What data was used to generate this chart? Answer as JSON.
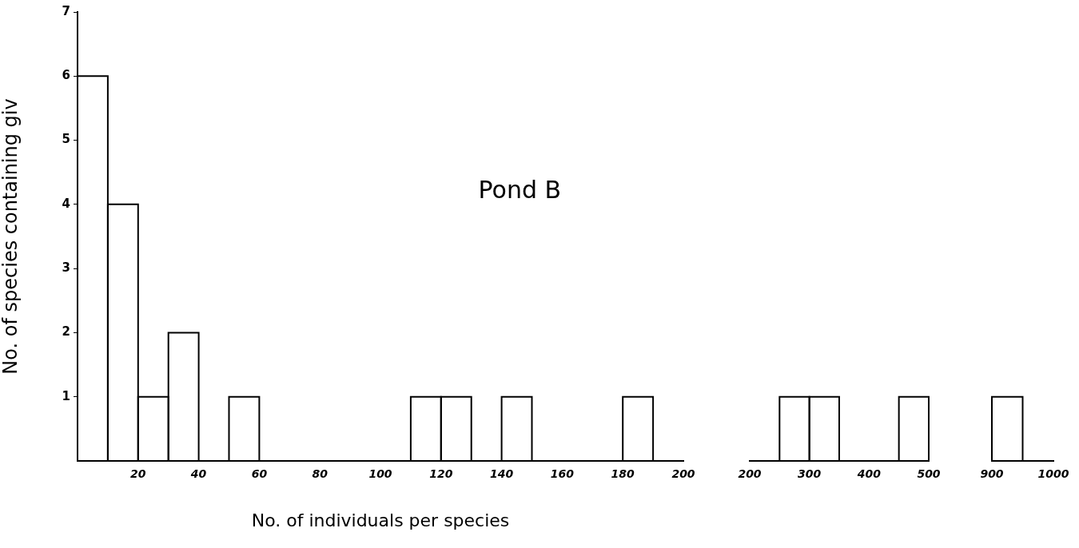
{
  "chart_data": [
    {
      "type": "histogram",
      "title": "Pond B",
      "xlabel": "No. of individuals per species",
      "ylabel": "No. of species containing giv",
      "color": "#000000",
      "bins": [
        0,
        10,
        20,
        30,
        40,
        50,
        60,
        70,
        80,
        90,
        100,
        110,
        120,
        130,
        140,
        150,
        160,
        170,
        180,
        190,
        200
      ],
      "values": [
        6,
        4,
        1,
        2,
        0,
        1,
        0,
        0,
        0,
        0,
        0,
        1,
        1,
        0,
        1,
        0,
        0,
        0,
        1,
        0
      ],
      "xlim": [
        0,
        200
      ],
      "xticks": [
        20,
        40,
        60,
        80,
        100,
        120,
        140,
        160,
        180,
        200
      ],
      "ylim": [
        0,
        7
      ],
      "yticks": [
        1,
        2,
        3,
        4,
        5,
        6,
        7
      ]
    },
    {
      "type": "histogram",
      "color": "#000000",
      "bins": [
        250,
        300,
        350,
        400,
        450,
        500
      ],
      "values": [
        1,
        1,
        0,
        0,
        1
      ],
      "xlim": [
        200,
        500
      ],
      "xticks": [
        200,
        300,
        400,
        500
      ],
      "ylim": [
        0,
        7
      ],
      "tick_labels": "x"
    },
    {
      "type": "histogram",
      "color": "#000000",
      "bins": [
        900,
        950
      ],
      "values": [
        1
      ],
      "xlim": [
        900,
        1000
      ],
      "xticks": [
        900,
        1000
      ],
      "ylim": [
        0,
        7
      ],
      "tick_labels": "x"
    }
  ]
}
